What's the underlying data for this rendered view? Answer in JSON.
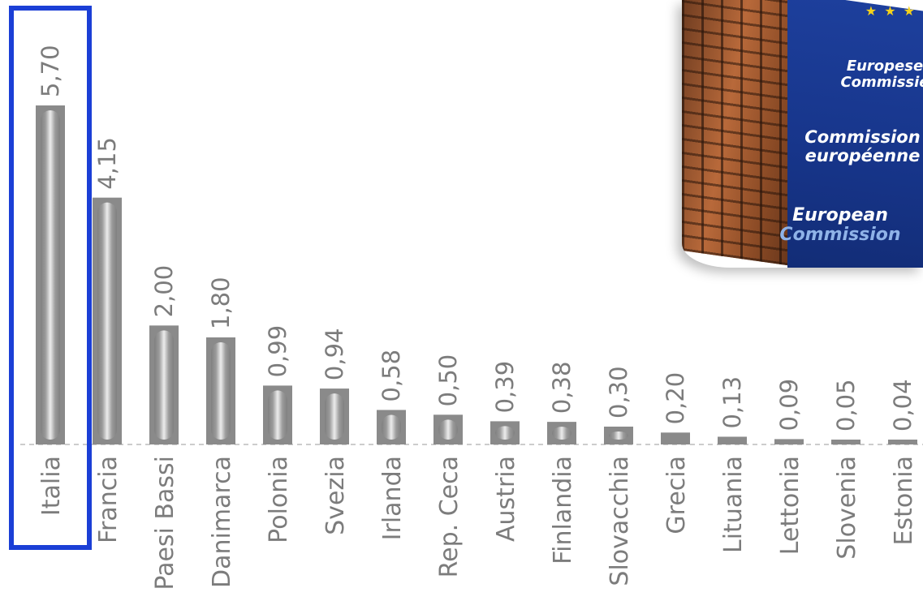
{
  "chart_data": {
    "type": "bar",
    "title": "",
    "xlabel": "",
    "ylabel": "",
    "ylim": [
      0,
      5.7
    ],
    "grid": false,
    "categories": [
      "Italia",
      "Francia",
      "Paesi Bassi",
      "Danimarca",
      "Polonia",
      "Svezia",
      "Irlanda",
      "Rep. Ceca",
      "Austria",
      "Finlandia",
      "Slovacchia",
      "Grecia",
      "Lituania",
      "Lettonia",
      "Slovenia",
      "Estonia"
    ],
    "values": [
      5.7,
      4.15,
      2.0,
      1.8,
      0.99,
      0.94,
      0.58,
      0.5,
      0.39,
      0.38,
      0.3,
      0.2,
      0.13,
      0.09,
      0.05,
      0.04
    ],
    "value_labels": [
      "5,70",
      "4,15",
      "2,00",
      "1,80",
      "0,99",
      "0,94",
      "0,58",
      "0,50",
      "0,39",
      "0,38",
      "0,30",
      "0,20",
      "0,13",
      "0,09",
      "0,05",
      "0,04"
    ],
    "highlighted_category": "Italia",
    "colors": {
      "bar": "#8a8a8a",
      "bar_highlight": "#e6e6e6",
      "label": "#7c7c7c",
      "highlight_box": "#1b3fd6",
      "baseline": "#cccccc"
    }
  },
  "photo": {
    "stars": "★ ★ ★",
    "banner_lines": [
      {
        "line1": "Europese",
        "line2": "Commissie"
      },
      {
        "line1": "Commission",
        "line2": "européenne"
      },
      {
        "line1": "European",
        "line2": "Commission"
      }
    ]
  }
}
